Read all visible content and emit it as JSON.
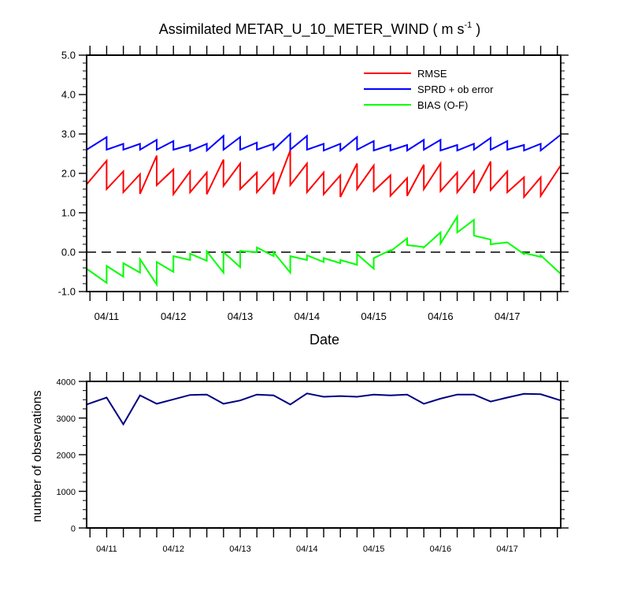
{
  "chart_data": [
    {
      "type": "line",
      "title": "Assimilated METAR_U_10_METER_WIND ( m s",
      "title_sup": "-1",
      "title_end": " )",
      "xlabel": "Date",
      "ylabel": "",
      "ylim": [
        -1.0,
        5.0
      ],
      "yticks": [
        "-1.0",
        "0.0",
        "1.0",
        "2.0",
        "3.0",
        "4.0",
        "5.0"
      ],
      "xlim": [
        10.7,
        17.8
      ],
      "xticks": [
        {
          "x": 11,
          "label": "04/11"
        },
        {
          "x": 12,
          "label": "04/12"
        },
        {
          "x": 13,
          "label": "04/13"
        },
        {
          "x": 14,
          "label": "04/14"
        },
        {
          "x": 15,
          "label": "04/15"
        },
        {
          "x": 16,
          "label": "04/16"
        },
        {
          "x": 17,
          "label": "04/17"
        }
      ],
      "zero_line": "dashed",
      "legend_position": "top-right",
      "series": [
        {
          "name": "RMSE",
          "color": "#ff0000",
          "points": [
            [
              10.7,
              1.72
            ],
            [
              11.0,
              2.32
            ],
            [
              11.0,
              1.6
            ],
            [
              11.25,
              2.05
            ],
            [
              11.25,
              1.52
            ],
            [
              11.5,
              1.98
            ],
            [
              11.5,
              1.48
            ],
            [
              11.75,
              2.45
            ],
            [
              11.75,
              1.7
            ],
            [
              12.0,
              2.1
            ],
            [
              12.0,
              1.47
            ],
            [
              12.25,
              2.05
            ],
            [
              12.25,
              1.52
            ],
            [
              12.5,
              2.02
            ],
            [
              12.5,
              1.47
            ],
            [
              12.75,
              2.35
            ],
            [
              12.75,
              1.68
            ],
            [
              13.0,
              2.25
            ],
            [
              13.0,
              1.6
            ],
            [
              13.25,
              2.02
            ],
            [
              13.25,
              1.52
            ],
            [
              13.5,
              2.0
            ],
            [
              13.5,
              1.47
            ],
            [
              13.75,
              2.58
            ],
            [
              13.75,
              1.7
            ],
            [
              14.0,
              2.25
            ],
            [
              14.0,
              1.52
            ],
            [
              14.25,
              2.02
            ],
            [
              14.25,
              1.47
            ],
            [
              14.5,
              1.95
            ],
            [
              14.5,
              1.4
            ],
            [
              14.75,
              2.25
            ],
            [
              14.75,
              1.6
            ],
            [
              15.0,
              2.2
            ],
            [
              15.0,
              1.55
            ],
            [
              15.25,
              1.95
            ],
            [
              15.25,
              1.43
            ],
            [
              15.5,
              1.88
            ],
            [
              15.5,
              1.43
            ],
            [
              15.75,
              2.22
            ],
            [
              15.75,
              1.6
            ],
            [
              16.0,
              2.25
            ],
            [
              16.0,
              1.55
            ],
            [
              16.25,
              2.02
            ],
            [
              16.25,
              1.52
            ],
            [
              16.5,
              2.05
            ],
            [
              16.5,
              1.5
            ],
            [
              16.75,
              2.3
            ],
            [
              16.75,
              1.58
            ],
            [
              17.0,
              2.05
            ],
            [
              17.0,
              1.52
            ],
            [
              17.25,
              1.9
            ],
            [
              17.25,
              1.4
            ],
            [
              17.5,
              1.9
            ],
            [
              17.5,
              1.43
            ],
            [
              17.8,
              2.2
            ]
          ]
        },
        {
          "name": "SPRD + ob error",
          "color": "#0000ff",
          "points": [
            [
              10.7,
              2.6
            ],
            [
              11.0,
              2.92
            ],
            [
              11.0,
              2.6
            ],
            [
              11.25,
              2.75
            ],
            [
              11.25,
              2.6
            ],
            [
              11.5,
              2.75
            ],
            [
              11.5,
              2.6
            ],
            [
              11.75,
              2.85
            ],
            [
              11.75,
              2.6
            ],
            [
              12.0,
              2.82
            ],
            [
              12.0,
              2.6
            ],
            [
              12.25,
              2.72
            ],
            [
              12.25,
              2.57
            ],
            [
              12.5,
              2.75
            ],
            [
              12.5,
              2.58
            ],
            [
              12.75,
              2.95
            ],
            [
              12.75,
              2.6
            ],
            [
              13.0,
              2.92
            ],
            [
              13.0,
              2.6
            ],
            [
              13.25,
              2.78
            ],
            [
              13.25,
              2.6
            ],
            [
              13.5,
              2.75
            ],
            [
              13.5,
              2.6
            ],
            [
              13.75,
              3.0
            ],
            [
              13.75,
              2.6
            ],
            [
              14.0,
              2.95
            ],
            [
              14.0,
              2.6
            ],
            [
              14.25,
              2.75
            ],
            [
              14.25,
              2.58
            ],
            [
              14.5,
              2.75
            ],
            [
              14.5,
              2.58
            ],
            [
              14.75,
              2.92
            ],
            [
              14.75,
              2.6
            ],
            [
              15.0,
              2.82
            ],
            [
              15.0,
              2.58
            ],
            [
              15.25,
              2.72
            ],
            [
              15.25,
              2.58
            ],
            [
              15.5,
              2.72
            ],
            [
              15.5,
              2.58
            ],
            [
              15.75,
              2.85
            ],
            [
              15.75,
              2.6
            ],
            [
              16.0,
              2.85
            ],
            [
              16.0,
              2.58
            ],
            [
              16.25,
              2.72
            ],
            [
              16.25,
              2.58
            ],
            [
              16.5,
              2.75
            ],
            [
              16.5,
              2.6
            ],
            [
              16.75,
              2.9
            ],
            [
              16.75,
              2.6
            ],
            [
              17.0,
              2.82
            ],
            [
              17.0,
              2.6
            ],
            [
              17.25,
              2.72
            ],
            [
              17.25,
              2.58
            ],
            [
              17.5,
              2.75
            ],
            [
              17.5,
              2.58
            ],
            [
              17.8,
              2.98
            ]
          ]
        },
        {
          "name": "BIAS (O-F)",
          "color": "#00ff00",
          "points": [
            [
              10.7,
              -0.42
            ],
            [
              11.0,
              -0.78
            ],
            [
              11.0,
              -0.35
            ],
            [
              11.25,
              -0.62
            ],
            [
              11.25,
              -0.28
            ],
            [
              11.5,
              -0.52
            ],
            [
              11.5,
              -0.18
            ],
            [
              11.75,
              -0.82
            ],
            [
              11.75,
              -0.25
            ],
            [
              12.0,
              -0.5
            ],
            [
              12.0,
              -0.1
            ],
            [
              12.25,
              -0.2
            ],
            [
              12.25,
              -0.04
            ],
            [
              12.5,
              -0.22
            ],
            [
              12.5,
              0.02
            ],
            [
              12.75,
              -0.52
            ],
            [
              12.75,
              0.0
            ],
            [
              13.0,
              -0.38
            ],
            [
              13.0,
              0.03
            ],
            [
              13.25,
              0.0
            ],
            [
              13.25,
              0.12
            ],
            [
              13.5,
              -0.1
            ],
            [
              13.5,
              0.0
            ],
            [
              13.75,
              -0.52
            ],
            [
              13.75,
              -0.1
            ],
            [
              14.0,
              -0.2
            ],
            [
              14.0,
              -0.08
            ],
            [
              14.25,
              -0.25
            ],
            [
              14.25,
              -0.15
            ],
            [
              14.5,
              -0.28
            ],
            [
              14.5,
              -0.2
            ],
            [
              14.75,
              -0.32
            ],
            [
              14.75,
              -0.05
            ],
            [
              15.0,
              -0.42
            ],
            [
              15.0,
              -0.15
            ],
            [
              15.25,
              0.05
            ],
            [
              15.25,
              0.02
            ],
            [
              15.5,
              0.35
            ],
            [
              15.5,
              0.18
            ],
            [
              15.75,
              0.13
            ],
            [
              15.75,
              0.12
            ],
            [
              16.0,
              0.5
            ],
            [
              16.0,
              0.22
            ],
            [
              16.25,
              0.9
            ],
            [
              16.25,
              0.5
            ],
            [
              16.5,
              0.82
            ],
            [
              16.5,
              0.42
            ],
            [
              16.75,
              0.32
            ],
            [
              16.75,
              0.2
            ],
            [
              17.0,
              0.25
            ],
            [
              17.0,
              0.25
            ],
            [
              17.25,
              -0.05
            ],
            [
              17.25,
              -0.02
            ],
            [
              17.5,
              -0.12
            ],
            [
              17.5,
              -0.08
            ],
            [
              17.8,
              -0.55
            ]
          ]
        }
      ]
    },
    {
      "type": "line",
      "title": "",
      "xlabel": "",
      "ylabel": "number of observations",
      "ylim": [
        0,
        4000
      ],
      "yticks": [
        "0",
        "1000",
        "2000",
        "3000",
        "4000"
      ],
      "xlim": [
        10.7,
        17.8
      ],
      "xticks": [
        {
          "x": 11,
          "label": "04/11"
        },
        {
          "x": 12,
          "label": "04/12"
        },
        {
          "x": 13,
          "label": "04/13"
        },
        {
          "x": 14,
          "label": "04/14"
        },
        {
          "x": 15,
          "label": "04/15"
        },
        {
          "x": 16,
          "label": "04/16"
        },
        {
          "x": 17,
          "label": "04/17"
        }
      ],
      "series": [
        {
          "color": "#000080",
          "points": [
            [
              10.7,
              3370
            ],
            [
              11.0,
              3560
            ],
            [
              11.25,
              2830
            ],
            [
              11.5,
              3620
            ],
            [
              11.75,
              3390
            ],
            [
              12.0,
              3510
            ],
            [
              12.25,
              3630
            ],
            [
              12.5,
              3640
            ],
            [
              12.75,
              3390
            ],
            [
              13.0,
              3480
            ],
            [
              13.25,
              3640
            ],
            [
              13.5,
              3620
            ],
            [
              13.75,
              3370
            ],
            [
              14.0,
              3670
            ],
            [
              14.25,
              3580
            ],
            [
              14.5,
              3600
            ],
            [
              14.75,
              3580
            ],
            [
              15.0,
              3640
            ],
            [
              15.25,
              3620
            ],
            [
              15.5,
              3640
            ],
            [
              15.75,
              3390
            ],
            [
              16.0,
              3530
            ],
            [
              16.25,
              3640
            ],
            [
              16.5,
              3640
            ],
            [
              16.75,
              3450
            ],
            [
              17.0,
              3560
            ],
            [
              17.25,
              3660
            ],
            [
              17.5,
              3650
            ],
            [
              17.8,
              3480
            ]
          ]
        }
      ]
    }
  ]
}
